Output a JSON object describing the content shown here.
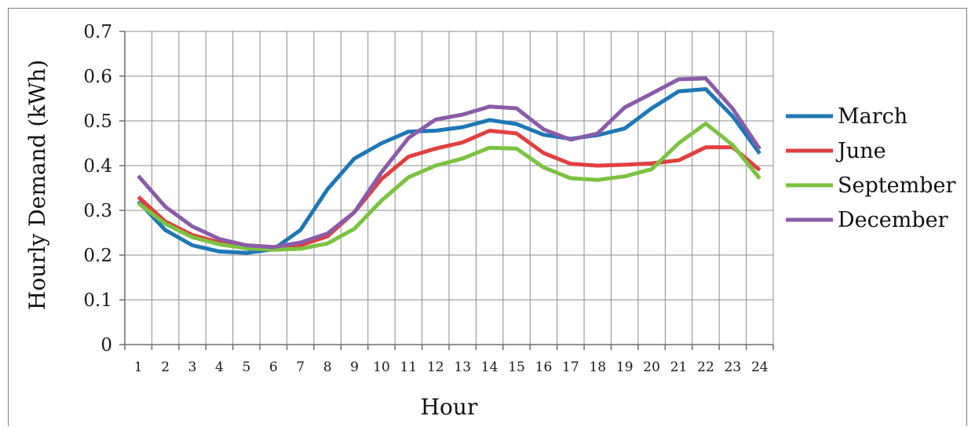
{
  "chart_data": {
    "type": "line",
    "title": "",
    "xlabel": "Hour",
    "ylabel": "Hourly Demand (kWh)",
    "categories": [
      "1",
      "2",
      "3",
      "4",
      "5",
      "6",
      "7",
      "8",
      "9",
      "10",
      "11",
      "12",
      "13",
      "14",
      "15",
      "16",
      "17",
      "18",
      "19",
      "20",
      "21",
      "22",
      "23",
      "24"
    ],
    "ylim": [
      0,
      0.7
    ],
    "yticks": [
      "0",
      "0.1",
      "0.2",
      "0.3",
      "0.4",
      "0.5",
      "0.6",
      "0.7"
    ],
    "grid": true,
    "legend_position": "right",
    "series": [
      {
        "name": "March",
        "color": "#1f77b4",
        "values": [
          0.32,
          0.256,
          0.222,
          0.208,
          0.205,
          0.213,
          0.256,
          0.347,
          0.416,
          0.45,
          0.476,
          0.478,
          0.486,
          0.502,
          0.493,
          0.469,
          0.46,
          0.468,
          0.483,
          0.528,
          0.566,
          0.571,
          0.51,
          0.427
        ]
      },
      {
        "name": "June",
        "color": "#e04040",
        "values": [
          0.33,
          0.275,
          0.245,
          0.228,
          0.22,
          0.216,
          0.222,
          0.242,
          0.296,
          0.37,
          0.42,
          0.438,
          0.452,
          0.478,
          0.472,
          0.428,
          0.404,
          0.4,
          0.402,
          0.405,
          0.412,
          0.441,
          0.441,
          0.39
        ]
      },
      {
        "name": "September",
        "color": "#7cc242",
        "values": [
          0.316,
          0.27,
          0.24,
          0.224,
          0.215,
          0.212,
          0.214,
          0.226,
          0.259,
          0.322,
          0.374,
          0.4,
          0.416,
          0.44,
          0.438,
          0.396,
          0.372,
          0.368,
          0.376,
          0.392,
          0.45,
          0.494,
          0.446,
          0.371
        ]
      },
      {
        "name": "December",
        "color": "#8a5ca8",
        "values": [
          0.377,
          0.308,
          0.264,
          0.236,
          0.222,
          0.218,
          0.228,
          0.248,
          0.296,
          0.385,
          0.462,
          0.503,
          0.514,
          0.532,
          0.528,
          0.481,
          0.458,
          0.472,
          0.53,
          0.561,
          0.593,
          0.595,
          0.527,
          0.437
        ]
      }
    ]
  }
}
